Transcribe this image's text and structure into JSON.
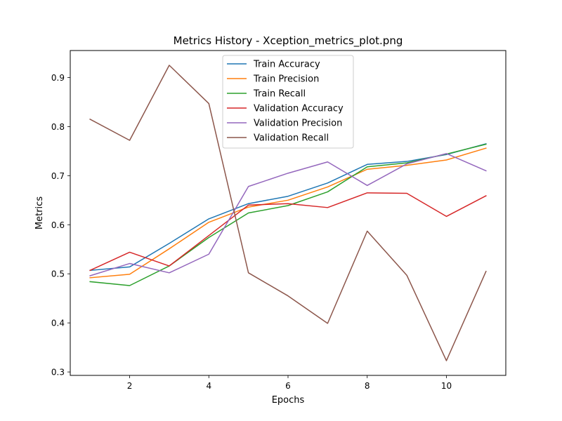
{
  "chart_data": {
    "type": "line",
    "title": "Metrics History - Xception_metrics_plot.png",
    "xlabel": "Epochs",
    "ylabel": "Metrics",
    "xlim": [
      0.5,
      11.5
    ],
    "ylim": [
      0.293,
      0.955
    ],
    "xticks": [
      2,
      4,
      6,
      8,
      10
    ],
    "yticks": [
      0.3,
      0.4,
      0.5,
      0.6,
      0.7,
      0.8,
      0.9
    ],
    "grid": false,
    "legend_position": "upper center",
    "x": [
      1,
      2,
      3,
      4,
      5,
      6,
      7,
      8,
      9,
      10,
      11
    ],
    "series": [
      {
        "name": "Train Accuracy",
        "color": "#1f77b4",
        "values": [
          0.507,
          0.514,
          0.562,
          0.612,
          0.643,
          0.658,
          0.685,
          0.723,
          0.729,
          0.743,
          0.765
        ]
      },
      {
        "name": "Train Precision",
        "color": "#ff7f0e",
        "values": [
          0.492,
          0.499,
          0.551,
          0.605,
          0.636,
          0.65,
          0.677,
          0.713,
          0.721,
          0.732,
          0.756
        ]
      },
      {
        "name": "Train Recall",
        "color": "#2ca02c",
        "values": [
          0.484,
          0.476,
          0.516,
          0.574,
          0.624,
          0.639,
          0.667,
          0.718,
          0.726,
          0.744,
          0.764
        ]
      },
      {
        "name": "Validation Accuracy",
        "color": "#d62728",
        "values": [
          0.507,
          0.544,
          0.516,
          0.578,
          0.64,
          0.643,
          0.635,
          0.665,
          0.664,
          0.617,
          0.659
        ]
      },
      {
        "name": "Validation Precision",
        "color": "#9467bd",
        "values": [
          0.496,
          0.521,
          0.502,
          0.54,
          0.678,
          0.705,
          0.728,
          0.68,
          0.724,
          0.745,
          0.71
        ]
      },
      {
        "name": "Validation Recall",
        "color": "#8c564b",
        "values": [
          0.815,
          0.772,
          0.925,
          0.847,
          0.502,
          0.455,
          0.399,
          0.587,
          0.497,
          0.323,
          0.505
        ]
      }
    ]
  }
}
